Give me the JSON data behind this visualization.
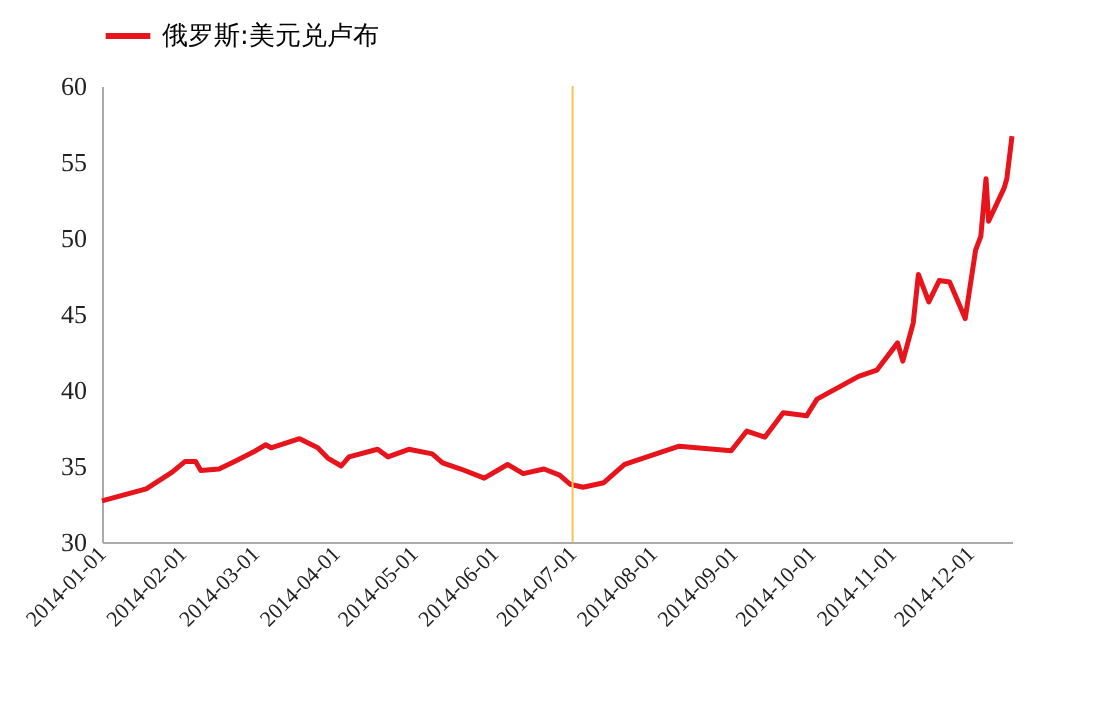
{
  "chart_data": {
    "type": "line",
    "legend": "top",
    "grid": false,
    "line_style": "solid",
    "marker": "none",
    "x": [
      "2014-01-01",
      "2014-01-18",
      "2014-01-28",
      "2014-02-02",
      "2014-02-06",
      "2014-02-08",
      "2014-02-15",
      "2014-02-21",
      "2014-02-28",
      "2014-03-05",
      "2014-03-07",
      "2014-03-18",
      "2014-03-25",
      "2014-03-29",
      "2014-04-03",
      "2014-04-06",
      "2014-04-17",
      "2014-04-21",
      "2014-04-29",
      "2014-05-08",
      "2014-05-12",
      "2014-05-19",
      "2014-05-28",
      "2014-06-06",
      "2014-06-12",
      "2014-06-20",
      "2014-06-26",
      "2014-06-30",
      "2014-07-05",
      "2014-07-13",
      "2014-07-21",
      "2014-08-11",
      "2014-08-31",
      "2014-09-06",
      "2014-09-13",
      "2014-09-20",
      "2014-09-29",
      "2014-10-03",
      "2014-10-19",
      "2014-10-26",
      "2014-11-03",
      "2014-11-05",
      "2014-11-09",
      "2014-11-11",
      "2014-11-15",
      "2014-11-19",
      "2014-11-23",
      "2014-11-29",
      "2014-12-03",
      "2014-12-05",
      "2014-12-07",
      "2014-12-08",
      "2014-12-14",
      "2014-12-15",
      "2014-12-17"
    ],
    "series": [
      {
        "name": "俄罗斯:美元兑卢布",
        "color": "#e8141c",
        "values": [
          32.7,
          33.5,
          34.6,
          35.3,
          35.3,
          34.7,
          34.8,
          35.3,
          35.9,
          36.4,
          36.2,
          36.8,
          36.2,
          35.5,
          35.0,
          35.6,
          36.1,
          35.6,
          36.1,
          35.8,
          35.2,
          34.8,
          34.2,
          35.1,
          34.5,
          34.8,
          34.4,
          33.8,
          33.6,
          33.9,
          35.1,
          36.3,
          36.0,
          37.3,
          36.9,
          38.5,
          38.3,
          39.4,
          40.9,
          41.3,
          43.1,
          41.9,
          44.4,
          47.6,
          45.8,
          47.2,
          47.1,
          44.7,
          49.2,
          50.1,
          53.9,
          51.1,
          53.3,
          53.9,
          56.7
        ]
      }
    ],
    "xlim": [
      "2014-01-01",
      "2014-12-17"
    ],
    "xticks": [
      "2014-01-01",
      "2014-02-01",
      "2014-03-01",
      "2014-04-01",
      "2014-05-01",
      "2014-06-01",
      "2014-07-01",
      "2014-08-01",
      "2014-09-01",
      "2014-10-01",
      "2014-11-01",
      "2014-12-01"
    ],
    "ylim": [
      30,
      60
    ],
    "yticks": [
      30,
      35,
      40,
      45,
      50,
      55,
      60
    ],
    "ref_lines": [
      {
        "axis": "x",
        "value": "2014-07-01",
        "color": "#f0c850"
      }
    ]
  }
}
